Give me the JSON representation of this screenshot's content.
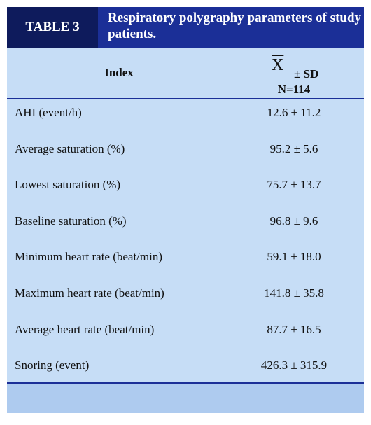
{
  "header": {
    "label": "TABLE 3",
    "title": "Respiratory polygraphy parameters of study patients."
  },
  "table": {
    "columns": {
      "index": "Index",
      "mean_symbol": "X",
      "stat": "± SD",
      "n": "N=114"
    },
    "rows": [
      [
        "AHI (event/h)",
        "12.6 ± 11.2"
      ],
      [
        "Average saturation (%)",
        "95.2 ± 5.6"
      ],
      [
        "Lowest saturation (%)",
        "75.7 ± 13.7"
      ],
      [
        "Baseline saturation (%)",
        "96.8 ± 9.6"
      ],
      [
        "Minimum heart rate (beat/min)",
        "59.1 ± 18.0"
      ],
      [
        "Maximum heart rate (beat/min)",
        "141.8 ± 35.8"
      ],
      [
        "Average heart rate (beat/min)",
        "87.7 ± 16.5"
      ],
      [
        "Snoring (event)",
        "426.3 ± 315.9"
      ]
    ]
  }
}
